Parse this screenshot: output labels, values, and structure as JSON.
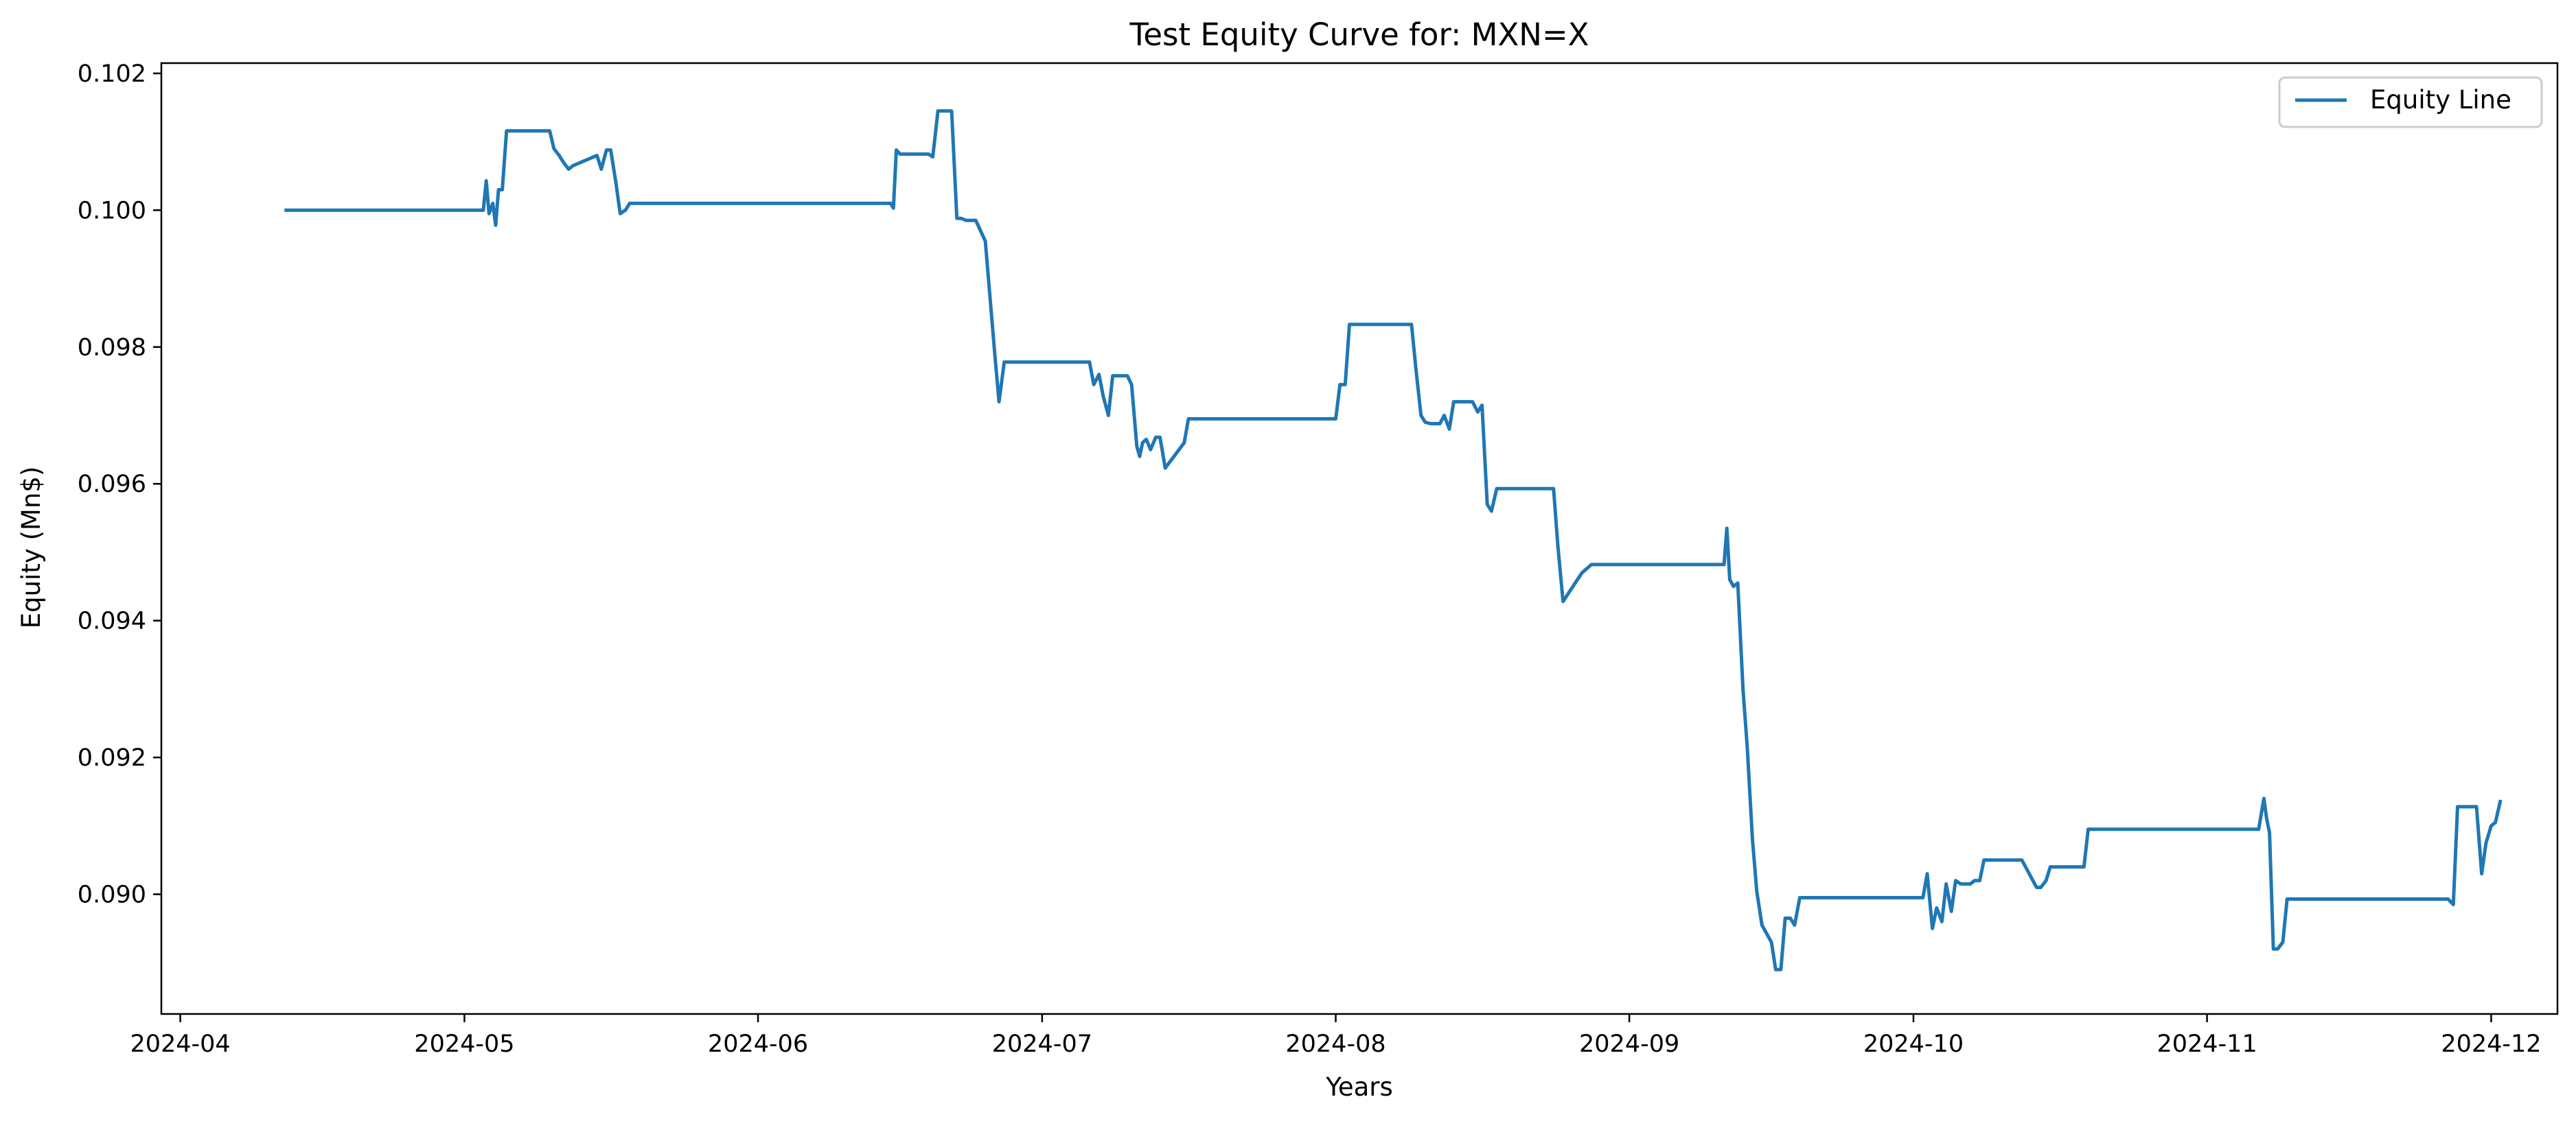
{
  "chart_data": {
    "type": "line",
    "title": "Test Equity Curve for: MXN=X",
    "xlabel": "Years",
    "ylabel": "Equity (Mn$)",
    "x_ticks": [
      "2024-04",
      "2024-05",
      "2024-06",
      "2024-07",
      "2024-08",
      "2024-09",
      "2024-10",
      "2024-11",
      "2024-12"
    ],
    "y_ticks": [
      "0.090",
      "0.092",
      "0.094",
      "0.096",
      "0.098",
      "0.100",
      "0.102"
    ],
    "xlim": [
      "2024-03-30",
      "2024-12-08"
    ],
    "ylim": [
      0.08825,
      0.10215
    ],
    "grid": false,
    "legend_position": "top-right",
    "colors": {
      "line": "#1f77b4"
    },
    "series": [
      {
        "name": "Equity Line",
        "x": [
          "2024-04-12",
          "2024-05-03",
          "2024-05-03",
          "2024-05-03",
          "2024-05-04",
          "2024-05-04",
          "2024-05-04",
          "2024-05-05",
          "2024-05-05",
          "2024-05-06",
          "2024-05-06",
          "2024-05-10",
          "2024-05-10",
          "2024-05-11",
          "2024-05-11",
          "2024-05-12",
          "2024-05-12",
          "2024-05-15",
          "2024-05-15",
          "2024-05-16",
          "2024-05-16",
          "2024-05-17",
          "2024-05-17",
          "2024-05-18",
          "2024-05-18",
          "2024-06-15",
          "2024-06-15",
          "2024-06-15",
          "2024-06-16",
          "2024-06-19",
          "2024-06-19",
          "2024-06-20",
          "2024-06-20",
          "2024-06-21",
          "2024-06-21",
          "2024-06-22",
          "2024-06-22",
          "2024-06-23",
          "2024-06-24",
          "2024-06-25",
          "2024-06-26",
          "2024-06-26",
          "2024-06-27",
          "2024-07-05",
          "2024-07-06",
          "2024-07-06",
          "2024-07-07",
          "2024-07-07",
          "2024-07-08",
          "2024-07-08",
          "2024-07-09",
          "2024-07-09",
          "2024-07-10",
          "2024-07-10",
          "2024-07-11",
          "2024-07-11",
          "2024-07-11",
          "2024-07-12",
          "2024-07-12",
          "2024-07-13",
          "2024-07-13",
          "2024-07-14",
          "2024-07-16",
          "2024-07-16",
          "2024-08-01",
          "2024-08-01",
          "2024-08-02",
          "2024-08-02",
          "2024-08-03",
          "2024-08-09",
          "2024-08-09",
          "2024-08-10",
          "2024-08-10",
          "2024-08-11",
          "2024-08-12",
          "2024-08-12",
          "2024-08-13",
          "2024-08-13",
          "2024-08-15",
          "2024-08-15",
          "2024-08-16",
          "2024-08-16",
          "2024-08-17",
          "2024-08-17",
          "2024-08-18",
          "2024-08-18",
          "2024-08-24",
          "2024-08-24",
          "2024-08-25",
          "2024-08-27",
          "2024-08-28",
          "2024-08-28",
          "2024-09-11",
          "2024-09-11",
          "2024-09-11",
          "2024-09-12",
          "2024-09-12",
          "2024-09-13",
          "2024-09-13",
          "2024-09-14",
          "2024-09-14",
          "2024-09-15",
          "2024-09-16",
          "2024-09-16",
          "2024-09-17",
          "2024-09-17",
          "2024-09-18",
          "2024-09-18",
          "2024-09-19",
          "2024-09-19",
          "2024-10-02",
          "2024-10-02",
          "2024-10-03",
          "2024-10-03",
          "2024-10-04",
          "2024-10-04",
          "2024-10-05",
          "2024-10-05",
          "2024-10-06",
          "2024-10-07",
          "2024-10-07",
          "2024-10-08",
          "2024-10-08",
          "2024-10-12",
          "2024-10-12",
          "2024-10-14",
          "2024-10-14",
          "2024-10-15",
          "2024-10-15",
          "2024-10-19",
          "2024-10-19",
          "2024-11-06",
          "2024-11-06",
          "2024-11-07",
          "2024-11-07",
          "2024-11-07",
          "2024-11-08",
          "2024-11-08",
          "2024-11-09",
          "2024-11-09",
          "2024-11-26",
          "2024-11-26",
          "2024-11-27",
          "2024-11-27",
          "2024-11-29",
          "2024-11-29",
          "2024-11-30",
          "2024-11-30",
          "2024-12-01",
          "2024-12-01",
          "2024-12-02"
        ],
        "values": [
          0.1,
          0.1,
          0.10043,
          0.09995,
          0.1001,
          0.09978,
          0.1003,
          0.1003,
          0.10116,
          0.10116,
          0.10116,
          0.10116,
          0.1009,
          0.1008,
          0.1007,
          0.1006,
          0.10065,
          0.1008,
          0.1006,
          0.10088,
          0.10088,
          0.1004,
          0.09995,
          0.1,
          0.1001,
          0.1001,
          0.10003,
          0.10088,
          0.10082,
          0.10082,
          0.10078,
          0.10145,
          0.10145,
          0.10145,
          0.10145,
          0.09988,
          0.09988,
          0.09985,
          0.09985,
          0.09955,
          0.0979,
          0.0972,
          0.09778,
          0.09778,
          0.09778,
          0.09745,
          0.0976,
          0.09728,
          0.097,
          0.09758,
          0.09758,
          0.09758,
          0.09758,
          0.09745,
          0.09655,
          0.0964,
          0.0966,
          0.09665,
          0.0965,
          0.09668,
          0.09668,
          0.09623,
          0.0966,
          0.09695,
          0.09695,
          0.09745,
          0.09745,
          0.09833,
          0.09833,
          0.09833,
          0.0977,
          0.097,
          0.0969,
          0.09688,
          0.09688,
          0.097,
          0.0968,
          0.0972,
          0.0972,
          0.0972,
          0.09705,
          0.09715,
          0.0957,
          0.0956,
          0.09593,
          0.09593,
          0.09593,
          0.0951,
          0.09428,
          0.0947,
          0.09482,
          0.09482,
          0.09482,
          0.09535,
          0.0946,
          0.0945,
          0.09455,
          0.093,
          0.09215,
          0.0908,
          0.09005,
          0.08955,
          0.0893,
          0.0889,
          0.0889,
          0.08965,
          0.08965,
          0.08955,
          0.08995,
          0.08995,
          0.08995,
          0.0903,
          0.0895,
          0.0898,
          0.0896,
          0.09015,
          0.08975,
          0.0902,
          0.09015,
          0.09015,
          0.0902,
          0.0902,
          0.0905,
          0.0905,
          0.0905,
          0.0901,
          0.0901,
          0.0902,
          0.0904,
          0.0904,
          0.09095,
          0.09095,
          0.09095,
          0.0914,
          0.0911,
          0.0909,
          0.0892,
          0.0892,
          0.0893,
          0.08993,
          0.08993,
          0.08993,
          0.08985,
          0.09128,
          0.09128,
          0.09128,
          0.0903,
          0.09075,
          0.091,
          0.09105,
          0.09138
        ]
      }
    ]
  }
}
